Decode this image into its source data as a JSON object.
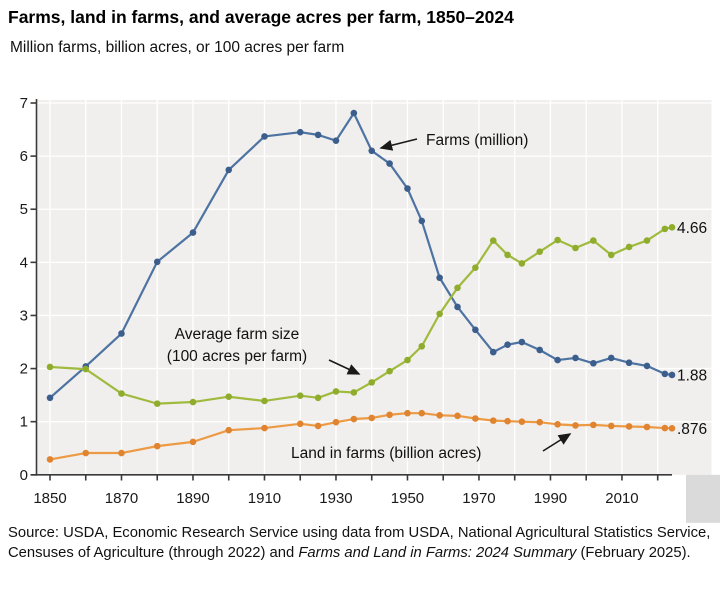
{
  "title": "Farms, land in farms, and average acres per farm, 1850–2024",
  "subtitle": "Million farms, billion acres, or 100 acres per farm",
  "chart_data": {
    "type": "line",
    "x": [
      1850,
      1860,
      1870,
      1880,
      1890,
      1900,
      1910,
      1920,
      1925,
      1930,
      1935,
      1940,
      1945,
      1950,
      1954,
      1959,
      1964,
      1969,
      1974,
      1978,
      1982,
      1987,
      1992,
      1997,
      2002,
      2007,
      2012,
      2017,
      2022,
      2024
    ],
    "series": [
      {
        "name": "Farms (million)",
        "color": "#4D73A2",
        "marker_color": "#3C5E8C",
        "end_label": "1.88",
        "values": [
          1.45,
          2.04,
          2.66,
          4.01,
          4.56,
          5.74,
          6.37,
          6.45,
          6.4,
          6.29,
          6.81,
          6.1,
          5.86,
          5.39,
          4.78,
          3.71,
          3.16,
          2.73,
          2.31,
          2.45,
          2.5,
          2.35,
          2.16,
          2.2,
          2.1,
          2.2,
          2.11,
          2.05,
          1.9,
          1.88
        ]
      },
      {
        "name": "Average farm size (100 acres per farm)",
        "color": "#A0BA3E",
        "marker_color": "#8FAC2D",
        "end_label": "4.66",
        "values": [
          2.03,
          1.99,
          1.53,
          1.34,
          1.37,
          1.47,
          1.39,
          1.49,
          1.45,
          1.57,
          1.55,
          1.74,
          1.95,
          2.16,
          2.42,
          3.03,
          3.52,
          3.9,
          4.41,
          4.14,
          3.98,
          4.2,
          4.42,
          4.27,
          4.41,
          4.14,
          4.29,
          4.41,
          4.63,
          4.66
        ]
      },
      {
        "name": "Land in farms (billion acres)",
        "color": "#EC9A44",
        "marker_color": "#E08430",
        "end_label": ".876",
        "values": [
          0.29,
          0.41,
          0.41,
          0.54,
          0.62,
          0.84,
          0.88,
          0.96,
          0.92,
          0.99,
          1.05,
          1.07,
          1.13,
          1.16,
          1.16,
          1.12,
          1.11,
          1.06,
          1.02,
          1.01,
          1.0,
          0.99,
          0.95,
          0.93,
          0.94,
          0.92,
          0.91,
          0.9,
          0.88,
          0.876
        ]
      }
    ],
    "ylim": [
      0,
      7
    ],
    "y_ticks": [
      0,
      1,
      2,
      3,
      4,
      5,
      6,
      7
    ],
    "x_axis_ticks": [
      1850,
      1860,
      1870,
      1880,
      1890,
      1900,
      1910,
      1920,
      1930,
      1940,
      1950,
      1960,
      1970,
      1980,
      1990,
      2000,
      2010,
      2020
    ],
    "x_axis_labels": [
      "1850",
      "1870",
      "1890",
      "1910",
      "1930",
      "1950",
      "1970",
      "1990",
      "2010"
    ],
    "grid": true,
    "legend_position": "none",
    "plot_bg": "#F0EFED",
    "annotations": {
      "farms": {
        "label": "Farms (million)"
      },
      "avg_size": {
        "line1": "Average farm size",
        "line2": "(100 acres per farm)"
      },
      "land": {
        "label": "Land in farms (billion acres)"
      }
    }
  },
  "source": {
    "prefix": "Source: USDA, Economic Research Service using data from USDA, National Agricultural Statistics Service, Censuses of Agriculture (through 2022) and ",
    "italic": "Farms and Land in Farms: 2024 Summary",
    "suffix": " (February 2025)."
  }
}
